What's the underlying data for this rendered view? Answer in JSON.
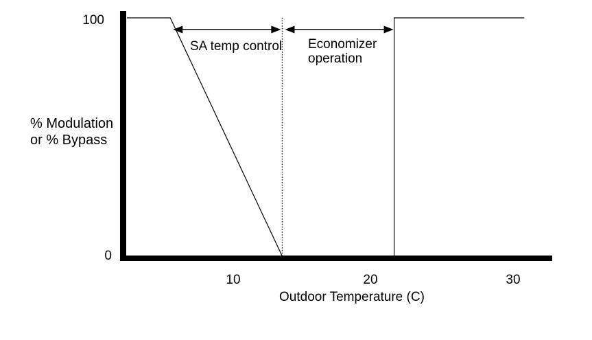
{
  "chart_data": {
    "type": "line",
    "title": "",
    "xlabel": "Outdoor Temperature (C)",
    "ylabel": "% Modulation\nor % Bypass",
    "xlim": [
      2.4,
      32.8
    ],
    "ylim": [
      0,
      100
    ],
    "x_ticks": [
      10,
      20,
      30
    ],
    "y_ticks": [
      0,
      100
    ],
    "grid": false,
    "legend": false,
    "series": [
      {
        "name": "sa-temp-modulation-ramp",
        "style": "solid",
        "x": [
          2.4,
          5.5,
          13.5
        ],
        "y": [
          100,
          100,
          0
        ]
      },
      {
        "name": "economizer-high-limit",
        "style": "solid",
        "x": [
          21.5,
          21.5,
          30.8
        ],
        "y": [
          0,
          100,
          100
        ]
      }
    ],
    "reference_lines": [
      {
        "name": "changeover-dotted-line",
        "x": 13.5,
        "y_from": 0,
        "y_to": 100,
        "style": "dotted"
      }
    ],
    "regions": [
      {
        "label": "SA temp control",
        "x_from": 5.7,
        "x_to": 13.4
      },
      {
        "label": "Economizer\noperation",
        "x_from": 13.7,
        "x_to": 21.45
      }
    ],
    "line_color": "#000000",
    "background_color": "#ffffff"
  }
}
